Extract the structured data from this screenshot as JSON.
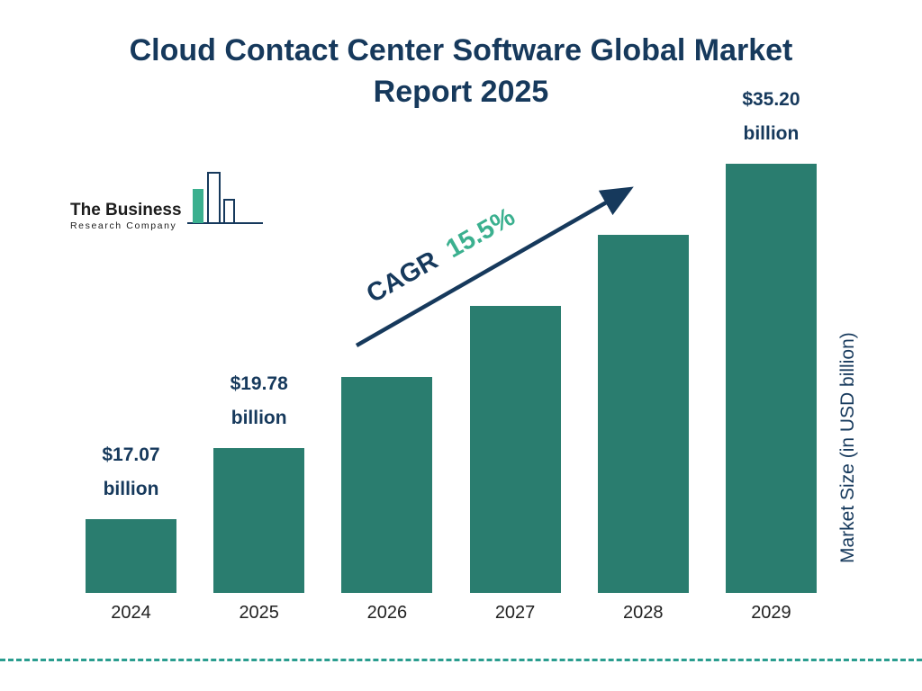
{
  "colors": {
    "navy": "#16395c",
    "teal": "#2a7d6f",
    "green": "#3bb08f",
    "dash": "#2a9d8f"
  },
  "title": {
    "line1": "Cloud Contact Center Software Global Market",
    "line2": "Report 2025"
  },
  "logo": {
    "line1": "The Business",
    "line2": "Research Company",
    "icon": "bar-chart-logo-icon"
  },
  "cagr": {
    "prefix": "CAGR",
    "value": "15.5%"
  },
  "y_axis": {
    "label": "Market Size (in USD billion)"
  },
  "chart_data": {
    "type": "bar",
    "title": "Cloud Contact Center Software Global Market Report 2025",
    "categories": [
      "2024",
      "2025",
      "2026",
      "2027",
      "2028",
      "2029"
    ],
    "values": [
      17.07,
      19.78,
      22.85,
      26.39,
      30.48,
      35.2
    ],
    "unit": "USD billion",
    "xlabel": "",
    "ylabel": "Market Size (in USD billion)",
    "data_labels": [
      "$17.07 billion",
      "$19.78 billion",
      null,
      null,
      null,
      "$35.20 billion"
    ],
    "cagr_percent": 15.5,
    "bar_color": "#2a7d6f",
    "legend": "none",
    "grid": "off"
  }
}
